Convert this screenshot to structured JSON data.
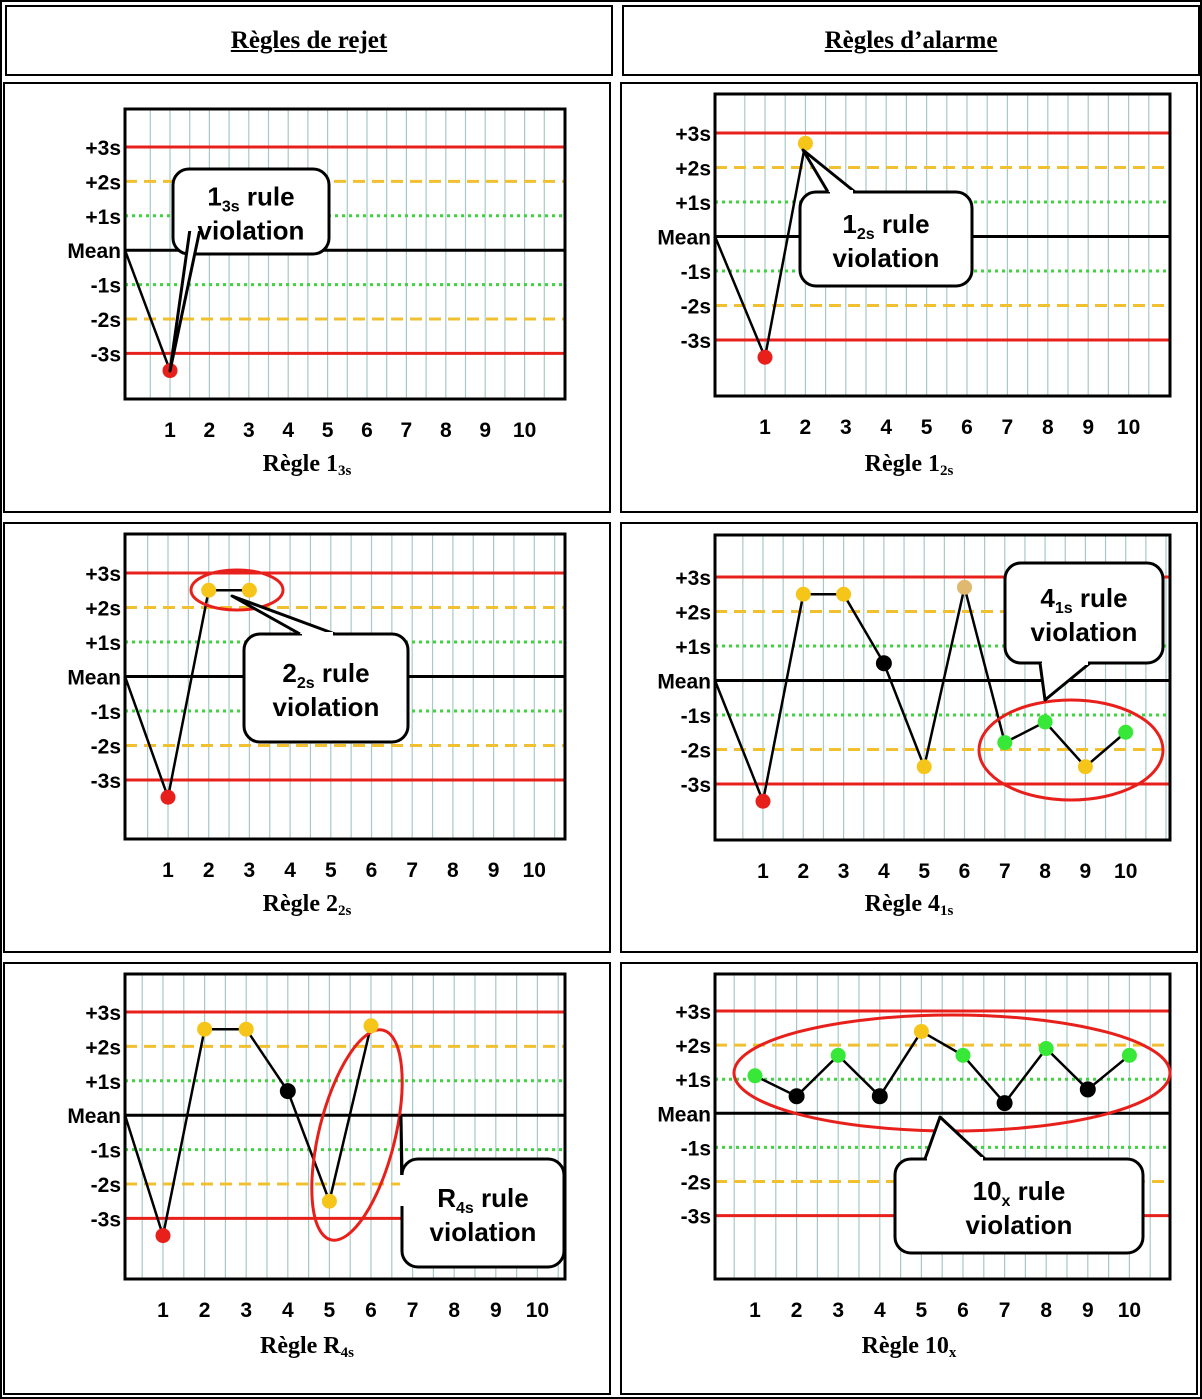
{
  "headers": {
    "left": "Règles de rejet",
    "right": "Règles d’alarme"
  },
  "colors": {
    "limit_3s": "#e8201c",
    "limit_2s": "#f0c030",
    "limit_1s": "#3fd43f",
    "mean": "#000000",
    "grid": "#a8c8c8",
    "point_red": "#e8201c",
    "point_yellow": "#f5c51a",
    "point_green": "#38e838",
    "point_black": "#000000",
    "point_tan": "#e0b870"
  },
  "y_levels": [
    {
      "label": "+3s",
      "value": 3,
      "style": "red"
    },
    {
      "label": "+2s",
      "value": 2,
      "style": "yellow"
    },
    {
      "label": "+1s",
      "value": 1,
      "style": "green"
    },
    {
      "label": "Mean",
      "value": 0,
      "style": "black"
    },
    {
      "label": "-1s",
      "value": -1,
      "style": "green"
    },
    {
      "label": "-2s",
      "value": -2,
      "style": "yellow"
    },
    {
      "label": "-3s",
      "value": -3,
      "style": "red"
    }
  ],
  "x_ticks": [
    "1",
    "2",
    "3",
    "4",
    "5",
    "6",
    "7",
    "8",
    "9",
    "10"
  ],
  "chart_data": [
    {
      "type": "line",
      "caption": {
        "main": "Règle 1",
        "sub": "3s"
      },
      "callout": {
        "line1_main": "1",
        "line1_sub": "3s",
        "line1_rest": " rule",
        "line2": "violation"
      },
      "start_value": 0,
      "points": [
        {
          "x": 1,
          "y": -3.5,
          "color": "red"
        }
      ],
      "ylim": [
        -3.5,
        3
      ]
    },
    {
      "type": "line",
      "caption": {
        "main": "Règle 1",
        "sub": "2s"
      },
      "callout": {
        "line1_main": "1",
        "line1_sub": "2s",
        "line1_rest": " rule",
        "line2": "violation"
      },
      "start_value": 0,
      "points": [
        {
          "x": 1,
          "y": -3.5,
          "color": "red"
        },
        {
          "x": 2,
          "y": 2.7,
          "color": "yellow"
        }
      ],
      "ylim": [
        -3.5,
        3
      ]
    },
    {
      "type": "line",
      "caption": {
        "main": "Règle 2",
        "sub": "2s"
      },
      "callout": {
        "line1_main": "2",
        "line1_sub": "2s",
        "line1_rest": " rule",
        "line2": "violation"
      },
      "start_value": 0,
      "points": [
        {
          "x": 1,
          "y": -3.5,
          "color": "red"
        },
        {
          "x": 2,
          "y": 2.5,
          "color": "yellow"
        },
        {
          "x": 3,
          "y": 2.5,
          "color": "yellow"
        }
      ],
      "ylim": [
        -3.5,
        3
      ]
    },
    {
      "type": "line",
      "caption": {
        "main": "Règle 4",
        "sub": "1s"
      },
      "callout": {
        "line1_main": "4",
        "line1_sub": "1s",
        "line1_rest": " rule",
        "line2": "violation"
      },
      "start_value": 0,
      "points": [
        {
          "x": 1,
          "y": -3.5,
          "color": "red"
        },
        {
          "x": 2,
          "y": 2.5,
          "color": "yellow"
        },
        {
          "x": 3,
          "y": 2.5,
          "color": "yellow"
        },
        {
          "x": 4,
          "y": 0.5,
          "color": "black"
        },
        {
          "x": 5,
          "y": -2.5,
          "color": "yellow"
        },
        {
          "x": 6,
          "y": 2.7,
          "color": "tan"
        },
        {
          "x": 7,
          "y": -1.8,
          "color": "green"
        },
        {
          "x": 8,
          "y": -1.2,
          "color": "green"
        },
        {
          "x": 9,
          "y": -2.5,
          "color": "yellow"
        },
        {
          "x": 10,
          "y": -1.5,
          "color": "green"
        }
      ],
      "ylim": [
        -3.5,
        3
      ]
    },
    {
      "type": "line",
      "caption": {
        "main": "Règle R",
        "sub": "4s"
      },
      "callout": {
        "line1_main": "R",
        "line1_sub": "4s",
        "line1_rest": " rule",
        "line2": "violation"
      },
      "start_value": 0,
      "points": [
        {
          "x": 1,
          "y": -3.5,
          "color": "red"
        },
        {
          "x": 2,
          "y": 2.5,
          "color": "yellow"
        },
        {
          "x": 3,
          "y": 2.5,
          "color": "yellow"
        },
        {
          "x": 4,
          "y": 0.7,
          "color": "black"
        },
        {
          "x": 5,
          "y": -2.5,
          "color": "yellow"
        },
        {
          "x": 6,
          "y": 2.6,
          "color": "yellow"
        }
      ],
      "ylim": [
        -3.5,
        3
      ]
    },
    {
      "type": "line",
      "caption": {
        "main": "Règle 10",
        "sub": "x"
      },
      "callout": {
        "line1_main": "10",
        "line1_sub": "x",
        "line1_rest": " rule",
        "line2": "violation"
      },
      "start_value": null,
      "points": [
        {
          "x": 1,
          "y": 1.1,
          "color": "green"
        },
        {
          "x": 2,
          "y": 0.5,
          "color": "black"
        },
        {
          "x": 3,
          "y": 1.7,
          "color": "green"
        },
        {
          "x": 4,
          "y": 0.5,
          "color": "black"
        },
        {
          "x": 5,
          "y": 2.4,
          "color": "yellow"
        },
        {
          "x": 6,
          "y": 1.7,
          "color": "green"
        },
        {
          "x": 7,
          "y": 0.3,
          "color": "black"
        },
        {
          "x": 8,
          "y": 1.9,
          "color": "green"
        },
        {
          "x": 9,
          "y": 0.7,
          "color": "black"
        },
        {
          "x": 10,
          "y": 1.7,
          "color": "green"
        }
      ],
      "ylim": [
        -3.5,
        3
      ]
    }
  ]
}
